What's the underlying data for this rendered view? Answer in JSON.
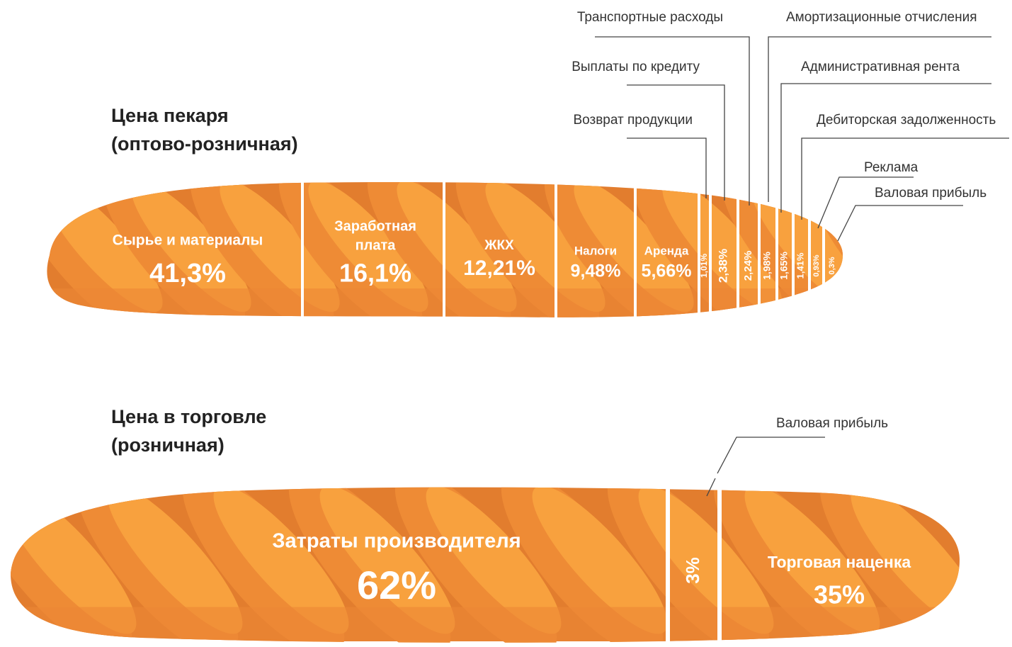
{
  "sections": [
    {
      "title": [
        "Цена пекаря",
        "(оптово-розничная)"
      ],
      "segments": [
        {
          "label": [
            "Сырье и материалы"
          ],
          "value": "41,3%"
        },
        {
          "label": [
            "Заработная",
            "плата"
          ],
          "value": "16,1%"
        },
        {
          "label": [
            "ЖКХ"
          ],
          "value": "12,21%"
        },
        {
          "label": [
            "Налоги"
          ],
          "value": "9,48%"
        },
        {
          "label": [
            "Аренда"
          ],
          "value": "5,66%"
        },
        {
          "label": [
            "Возврат продукции"
          ],
          "value": "1,01%"
        },
        {
          "label": [
            "Выплаты по кредиту"
          ],
          "value": "2,38%"
        },
        {
          "label": [
            "Транспортные расходы"
          ],
          "value": "2,24%"
        },
        {
          "label": [
            "Амортизационные отчисления"
          ],
          "value": "1,98%"
        },
        {
          "label": [
            "Административная рента"
          ],
          "value": "1,65%"
        },
        {
          "label": [
            "Дебиторская задолженность"
          ],
          "value": "1,41%"
        },
        {
          "label": [
            "Реклама"
          ],
          "value": "0,93%"
        },
        {
          "label": [
            "Валовая прибыль"
          ],
          "value": "0,3%"
        }
      ]
    },
    {
      "title": [
        "Цена в торговле",
        "(розничная)"
      ],
      "segments": [
        {
          "label": [
            "Затраты производителя"
          ],
          "value": "62%"
        },
        {
          "label": [
            "Валовая прибыль"
          ],
          "value": "3%"
        },
        {
          "label": [
            "Торговая наценка"
          ],
          "value": "35%"
        }
      ]
    }
  ]
}
